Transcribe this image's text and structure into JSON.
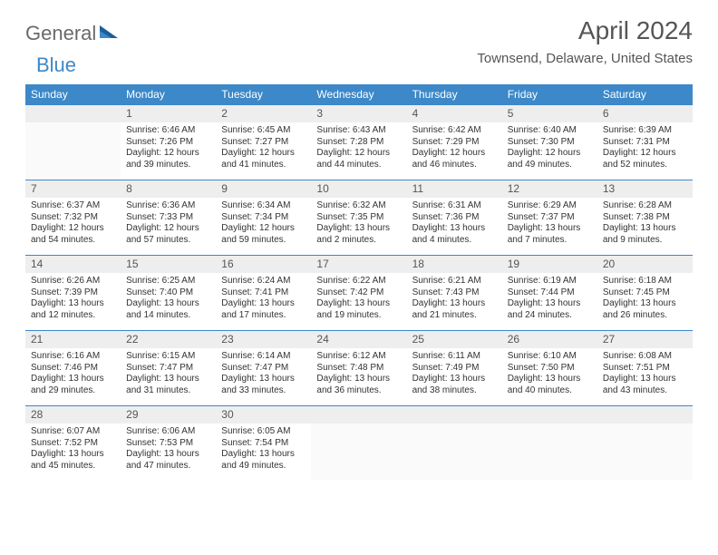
{
  "brand": {
    "part1": "General",
    "part2": "Blue"
  },
  "header": {
    "month_title": "April 2024",
    "location": "Townsend, Delaware, United States"
  },
  "colors": {
    "header_bg": "#3c88c8",
    "header_text": "#ffffff",
    "daynum_bg": "#eeeeee",
    "daynum_border": "#3c88c8",
    "body_text": "#333333",
    "title_text": "#555555",
    "logo_gray": "#6a6a6a",
    "logo_blue": "#3c88c8"
  },
  "weekdays": [
    "Sunday",
    "Monday",
    "Tuesday",
    "Wednesday",
    "Thursday",
    "Friday",
    "Saturday"
  ],
  "weeks": [
    [
      {
        "n": "",
        "sunrise": "",
        "sunset": "",
        "day": ""
      },
      {
        "n": "1",
        "sunrise": "Sunrise: 6:46 AM",
        "sunset": "Sunset: 7:26 PM",
        "day": "Daylight: 12 hours and 39 minutes."
      },
      {
        "n": "2",
        "sunrise": "Sunrise: 6:45 AM",
        "sunset": "Sunset: 7:27 PM",
        "day": "Daylight: 12 hours and 41 minutes."
      },
      {
        "n": "3",
        "sunrise": "Sunrise: 6:43 AM",
        "sunset": "Sunset: 7:28 PM",
        "day": "Daylight: 12 hours and 44 minutes."
      },
      {
        "n": "4",
        "sunrise": "Sunrise: 6:42 AM",
        "sunset": "Sunset: 7:29 PM",
        "day": "Daylight: 12 hours and 46 minutes."
      },
      {
        "n": "5",
        "sunrise": "Sunrise: 6:40 AM",
        "sunset": "Sunset: 7:30 PM",
        "day": "Daylight: 12 hours and 49 minutes."
      },
      {
        "n": "6",
        "sunrise": "Sunrise: 6:39 AM",
        "sunset": "Sunset: 7:31 PM",
        "day": "Daylight: 12 hours and 52 minutes."
      }
    ],
    [
      {
        "n": "7",
        "sunrise": "Sunrise: 6:37 AM",
        "sunset": "Sunset: 7:32 PM",
        "day": "Daylight: 12 hours and 54 minutes."
      },
      {
        "n": "8",
        "sunrise": "Sunrise: 6:36 AM",
        "sunset": "Sunset: 7:33 PM",
        "day": "Daylight: 12 hours and 57 minutes."
      },
      {
        "n": "9",
        "sunrise": "Sunrise: 6:34 AM",
        "sunset": "Sunset: 7:34 PM",
        "day": "Daylight: 12 hours and 59 minutes."
      },
      {
        "n": "10",
        "sunrise": "Sunrise: 6:32 AM",
        "sunset": "Sunset: 7:35 PM",
        "day": "Daylight: 13 hours and 2 minutes."
      },
      {
        "n": "11",
        "sunrise": "Sunrise: 6:31 AM",
        "sunset": "Sunset: 7:36 PM",
        "day": "Daylight: 13 hours and 4 minutes."
      },
      {
        "n": "12",
        "sunrise": "Sunrise: 6:29 AM",
        "sunset": "Sunset: 7:37 PM",
        "day": "Daylight: 13 hours and 7 minutes."
      },
      {
        "n": "13",
        "sunrise": "Sunrise: 6:28 AM",
        "sunset": "Sunset: 7:38 PM",
        "day": "Daylight: 13 hours and 9 minutes."
      }
    ],
    [
      {
        "n": "14",
        "sunrise": "Sunrise: 6:26 AM",
        "sunset": "Sunset: 7:39 PM",
        "day": "Daylight: 13 hours and 12 minutes."
      },
      {
        "n": "15",
        "sunrise": "Sunrise: 6:25 AM",
        "sunset": "Sunset: 7:40 PM",
        "day": "Daylight: 13 hours and 14 minutes."
      },
      {
        "n": "16",
        "sunrise": "Sunrise: 6:24 AM",
        "sunset": "Sunset: 7:41 PM",
        "day": "Daylight: 13 hours and 17 minutes."
      },
      {
        "n": "17",
        "sunrise": "Sunrise: 6:22 AM",
        "sunset": "Sunset: 7:42 PM",
        "day": "Daylight: 13 hours and 19 minutes."
      },
      {
        "n": "18",
        "sunrise": "Sunrise: 6:21 AM",
        "sunset": "Sunset: 7:43 PM",
        "day": "Daylight: 13 hours and 21 minutes."
      },
      {
        "n": "19",
        "sunrise": "Sunrise: 6:19 AM",
        "sunset": "Sunset: 7:44 PM",
        "day": "Daylight: 13 hours and 24 minutes."
      },
      {
        "n": "20",
        "sunrise": "Sunrise: 6:18 AM",
        "sunset": "Sunset: 7:45 PM",
        "day": "Daylight: 13 hours and 26 minutes."
      }
    ],
    [
      {
        "n": "21",
        "sunrise": "Sunrise: 6:16 AM",
        "sunset": "Sunset: 7:46 PM",
        "day": "Daylight: 13 hours and 29 minutes."
      },
      {
        "n": "22",
        "sunrise": "Sunrise: 6:15 AM",
        "sunset": "Sunset: 7:47 PM",
        "day": "Daylight: 13 hours and 31 minutes."
      },
      {
        "n": "23",
        "sunrise": "Sunrise: 6:14 AM",
        "sunset": "Sunset: 7:47 PM",
        "day": "Daylight: 13 hours and 33 minutes."
      },
      {
        "n": "24",
        "sunrise": "Sunrise: 6:12 AM",
        "sunset": "Sunset: 7:48 PM",
        "day": "Daylight: 13 hours and 36 minutes."
      },
      {
        "n": "25",
        "sunrise": "Sunrise: 6:11 AM",
        "sunset": "Sunset: 7:49 PM",
        "day": "Daylight: 13 hours and 38 minutes."
      },
      {
        "n": "26",
        "sunrise": "Sunrise: 6:10 AM",
        "sunset": "Sunset: 7:50 PM",
        "day": "Daylight: 13 hours and 40 minutes."
      },
      {
        "n": "27",
        "sunrise": "Sunrise: 6:08 AM",
        "sunset": "Sunset: 7:51 PM",
        "day": "Daylight: 13 hours and 43 minutes."
      }
    ],
    [
      {
        "n": "28",
        "sunrise": "Sunrise: 6:07 AM",
        "sunset": "Sunset: 7:52 PM",
        "day": "Daylight: 13 hours and 45 minutes."
      },
      {
        "n": "29",
        "sunrise": "Sunrise: 6:06 AM",
        "sunset": "Sunset: 7:53 PM",
        "day": "Daylight: 13 hours and 47 minutes."
      },
      {
        "n": "30",
        "sunrise": "Sunrise: 6:05 AM",
        "sunset": "Sunset: 7:54 PM",
        "day": "Daylight: 13 hours and 49 minutes."
      },
      {
        "n": "",
        "sunrise": "",
        "sunset": "",
        "day": ""
      },
      {
        "n": "",
        "sunrise": "",
        "sunset": "",
        "day": ""
      },
      {
        "n": "",
        "sunrise": "",
        "sunset": "",
        "day": ""
      },
      {
        "n": "",
        "sunrise": "",
        "sunset": "",
        "day": ""
      }
    ]
  ]
}
